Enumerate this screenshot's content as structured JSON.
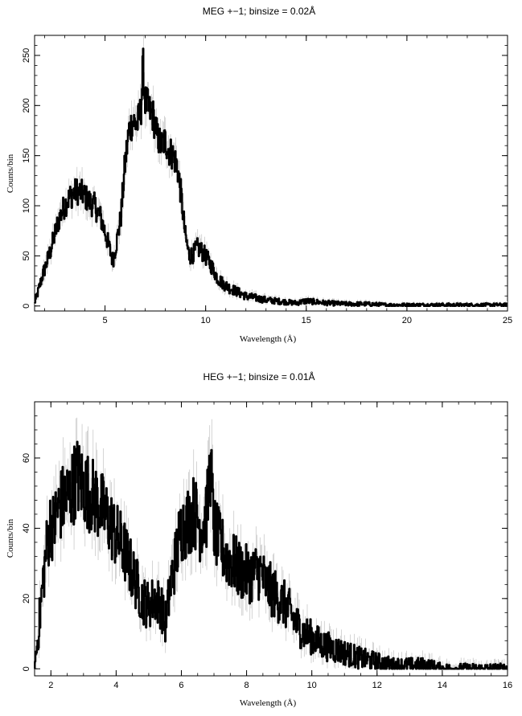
{
  "chart_data": [
    {
      "type": "line",
      "title": "MEG +−1; binsize = 0.02Å",
      "xlabel": "Wavelength (Å)",
      "ylabel": "Counts/bin",
      "xlim": [
        1.5,
        25
      ],
      "ylim": [
        -5,
        270
      ],
      "x_ticks": [
        5,
        10,
        15,
        20,
        25
      ],
      "y_ticks": [
        0,
        50,
        100,
        150,
        200,
        250
      ],
      "grid": false,
      "error_bars": true,
      "series": [
        {
          "x": [
            1.5,
            1.7,
            1.9,
            2.1,
            2.3,
            2.5,
            2.7,
            3.0,
            3.3,
            3.6,
            3.9,
            4.2,
            4.5,
            4.8,
            5.0,
            5.2,
            5.4,
            5.6,
            5.8,
            6.0,
            6.2,
            6.4,
            6.6,
            6.8,
            6.9,
            7.0,
            7.2,
            7.4,
            7.6,
            7.8,
            8.0,
            8.2,
            8.4,
            8.6,
            8.8,
            9.0,
            9.2,
            9.4,
            9.6,
            9.8,
            10.0,
            10.3,
            10.6,
            10.9,
            11.2,
            11.6,
            12.0,
            12.5,
            13.0,
            13.5,
            14.0,
            14.5,
            15.0,
            16.0,
            17.0,
            18.0,
            19.0,
            20.0,
            22.0,
            24.0,
            25.0
          ],
          "y": [
            2,
            15,
            30,
            42,
            55,
            70,
            85,
            100,
            110,
            115,
            112,
            105,
            100,
            88,
            75,
            60,
            45,
            65,
            88,
            140,
            175,
            185,
            180,
            195,
            240,
            205,
            195,
            190,
            170,
            160,
            165,
            155,
            150,
            140,
            110,
            70,
            50,
            52,
            58,
            55,
            50,
            40,
            28,
            22,
            18,
            14,
            10,
            8,
            6,
            5,
            4,
            3,
            5,
            3,
            2,
            2,
            1,
            1,
            1,
            1,
            1
          ]
        }
      ]
    },
    {
      "type": "line",
      "title": "HEG +−1; binsize = 0.01Å",
      "xlabel": "Wavelength (Å)",
      "ylabel": "Counts/bin",
      "xlim": [
        1.5,
        16
      ],
      "ylim": [
        -2,
        76
      ],
      "x_ticks": [
        2,
        4,
        6,
        8,
        10,
        12,
        14,
        16
      ],
      "y_ticks": [
        0,
        20,
        40,
        60
      ],
      "grid": false,
      "error_bars": true,
      "series": [
        {
          "x": [
            1.5,
            1.6,
            1.7,
            1.8,
            1.9,
            2.0,
            2.1,
            2.2,
            2.4,
            2.6,
            2.8,
            3.0,
            3.2,
            3.4,
            3.6,
            3.8,
            4.0,
            4.2,
            4.4,
            4.6,
            4.8,
            5.0,
            5.2,
            5.4,
            5.5,
            5.7,
            5.9,
            6.0,
            6.2,
            6.4,
            6.6,
            6.8,
            6.9,
            7.0,
            7.2,
            7.4,
            7.6,
            7.8,
            8.0,
            8.2,
            8.4,
            8.6,
            8.8,
            9.0,
            9.2,
            9.4,
            9.6,
            9.8,
            10.0,
            10.3,
            10.6,
            10.9,
            11.2,
            11.5,
            12.0,
            12.5,
            13.0,
            13.5,
            14.0,
            15.0,
            16.0
          ],
          "y": [
            0,
            8,
            18,
            28,
            36,
            42,
            40,
            45,
            48,
            50,
            55,
            52,
            50,
            48,
            45,
            42,
            38,
            35,
            30,
            25,
            20,
            18,
            20,
            18,
            12,
            25,
            35,
            40,
            42,
            45,
            40,
            45,
            58,
            40,
            35,
            32,
            30,
            28,
            27,
            27,
            28,
            24,
            22,
            20,
            18,
            15,
            12,
            10,
            9,
            7,
            6,
            5,
            4,
            3,
            2,
            1,
            1,
            1,
            0,
            0,
            0
          ]
        }
      ]
    }
  ]
}
